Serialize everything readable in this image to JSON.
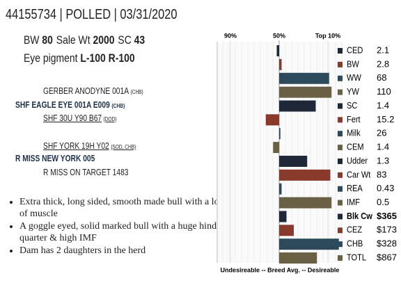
{
  "header": {
    "title": "44155734 | POLLED | 03/31/2020"
  },
  "stats": [
    [
      {
        "label": "BW",
        "value": "80"
      },
      {
        "label": "Sale Wt",
        "value": "2000"
      },
      {
        "label": "SC",
        "value": "43"
      }
    ],
    [
      {
        "label": "Eye pigment",
        "value": "L-100  R-100"
      }
    ]
  ],
  "pedigree": [
    {
      "name": "GERBER ANODYNE 001A",
      "tag": "{CHB}"
    },
    {
      "name": "SHF EAGLE EYE 001A E009",
      "tag": "{CHB}"
    },
    {
      "name": "SHF 30U Y90 B67",
      "tag": "{DOD}"
    },
    {
      "name": "SHF YORK 19H Y02",
      "tag": "{SOD, CHB}"
    },
    {
      "name": "R MISS NEW YORK 005",
      "tag": ""
    },
    {
      "name": "R MISS ON TARGET 1483",
      "tag": ""
    }
  ],
  "bullets": [
    "Extra thick, long sided, smooth made bull with a lot of muscle",
    "A goggle eyed, solid marked bull with a huge hind quarter & high IMF",
    "Dam has 2 daughters in the herd"
  ],
  "chart_data": {
    "type": "bar",
    "orientation": "horizontal",
    "categories": [
      "CED",
      "BW",
      "WW",
      "YW",
      "SC",
      "Fert",
      "Milk",
      "CEM",
      "Udder",
      "Car Wt",
      "REA",
      "IMF",
      "Blk Cw",
      "CEZ",
      "CHB",
      "TOTL"
    ],
    "values": [
      52,
      48,
      9,
      7,
      20,
      61,
      49,
      55,
      27,
      8,
      48,
      7,
      44,
      38,
      1,
      19
    ],
    "epds": [
      "2.1",
      "2.8",
      "68",
      "110",
      "1.4",
      "15.2",
      "26",
      "1.4",
      "1.3",
      "83",
      "0.43",
      "0.5",
      "$365",
      "$173",
      "$328",
      "$867"
    ],
    "colors": [
      "#1e2838",
      "#8a3a2c",
      "#2c4a5c",
      "#6a6046",
      "#1e2838",
      "#8a3a2c",
      "#2c4a5c",
      "#6a6046",
      "#1e2838",
      "#8a3a2c",
      "#2c4a5c",
      "#6a6046",
      "#1e2838",
      "#8a3a2c",
      "#2c4a5c",
      "#6a6046"
    ],
    "xlim": [
      100,
      0
    ],
    "xticks": [
      {
        "value": 90,
        "label": "90%"
      },
      {
        "value": 50,
        "label": "50%"
      },
      {
        "value": 10,
        "label": "Top 10%"
      }
    ],
    "footer": "Undesireable -- Breed Avg. -- Desireable"
  }
}
